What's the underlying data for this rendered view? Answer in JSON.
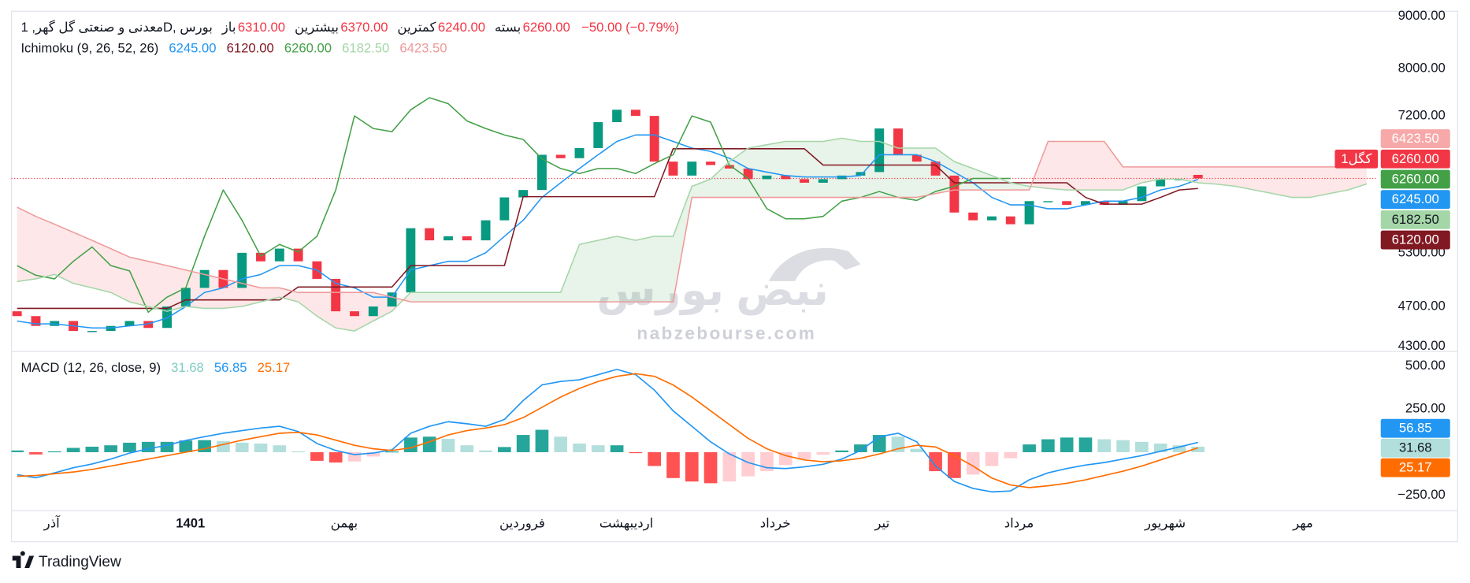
{
  "header": {
    "title": "معدنی و صنعتی گل گهر, 1D, بورس",
    "ohlc": [
      {
        "label": "باز",
        "value": "6310.00"
      },
      {
        "label": "بیشترین",
        "value": "6370.00"
      },
      {
        "label": "کمترین",
        "value": "6240.00"
      },
      {
        "label": "بسته",
        "value": "6260.00"
      }
    ],
    "change": "−50.00 (−0.79%)",
    "value_color": "#f23645"
  },
  "watermark": {
    "logo": "نبض بورس",
    "site": "nabzebourse.com"
  },
  "footer": {
    "brand": "TradingView"
  },
  "chart_data": [
    {
      "type": "candlestick",
      "log_scale": true,
      "ylim": [
        4250,
        9100
      ],
      "yticks": [
        {
          "value": 9000,
          "label": "9000.00"
        },
        {
          "value": 8000,
          "label": "8000.00"
        },
        {
          "value": 7200,
          "label": "7200.00"
        },
        {
          "value": 5300,
          "label": "5300.00"
        },
        {
          "value": 4700,
          "label": "4700.00"
        },
        {
          "value": 4300,
          "label": "4300.00"
        }
      ],
      "xlim": [
        -0.3,
        72.6
      ],
      "x": [
        0,
        1,
        2,
        3,
        4,
        5,
        6,
        7,
        8,
        9,
        10,
        11,
        12,
        13,
        14,
        15,
        16,
        17,
        18,
        19,
        20,
        21,
        22,
        23,
        24,
        25,
        26,
        27,
        28,
        29,
        30,
        31,
        32,
        33,
        34,
        35,
        36,
        37,
        38,
        39,
        40,
        41,
        42,
        43,
        44,
        45,
        46,
        47,
        48,
        49,
        50,
        51,
        52,
        53,
        54,
        55,
        56,
        57,
        58,
        59,
        60,
        61,
        62,
        63,
        64,
        65,
        66,
        67,
        68,
        69,
        70,
        71,
        72
      ],
      "open": [
        4650,
        4600,
        4500,
        4550,
        4450,
        4450,
        4500,
        4550,
        4480,
        4700,
        4900,
        5100,
        4900,
        5300,
        5200,
        5350,
        5200,
        5000,
        4650,
        4600,
        4700,
        4850,
        5600,
        5450,
        5500,
        5450,
        5700,
        6000,
        6100,
        6600,
        6550,
        6700,
        7100,
        7300,
        7200,
        6500,
        6300,
        6500,
        6450,
        6400,
        6250,
        6300,
        6250,
        6200,
        6250,
        6300,
        6350,
        7000,
        6600,
        6500,
        6300,
        5800,
        5700,
        5750,
        5650,
        5950,
        5950,
        5900,
        5950,
        5900,
        5950,
        6150,
        6250,
        6310,
        null,
        null,
        null,
        null,
        null,
        null,
        null,
        null,
        null
      ],
      "close": [
        4600,
        4500,
        4550,
        4450,
        4450,
        4500,
        4550,
        4480,
        4700,
        4900,
        5100,
        4900,
        5300,
        5200,
        5350,
        5200,
        5000,
        4650,
        4600,
        4700,
        4850,
        5600,
        5450,
        5500,
        5450,
        5700,
        6000,
        6100,
        6600,
        6550,
        6700,
        7100,
        7300,
        7200,
        6500,
        6300,
        6500,
        6450,
        6400,
        6250,
        6300,
        6250,
        6200,
        6250,
        6300,
        6350,
        7000,
        6600,
        6500,
        6300,
        5800,
        5700,
        5750,
        5650,
        5950,
        5950,
        5900,
        5950,
        5900,
        5950,
        6150,
        6250,
        6250,
        6260,
        null,
        null,
        null,
        null,
        null,
        null,
        null,
        null,
        null
      ],
      "up_color": "#089981",
      "down_color": "#f23645",
      "last_price_line": true,
      "series": [
        {
          "color": "#2196f3",
          "values": [
            4550,
            4520,
            4520,
            4500,
            4480,
            4480,
            4500,
            4520,
            4580,
            4700,
            4850,
            4900,
            5000,
            5050,
            5150,
            5150,
            5100,
            4950,
            4900,
            4800,
            4800,
            5100,
            5150,
            5200,
            5200,
            5300,
            5500,
            5700,
            6000,
            6200,
            6400,
            6600,
            6800,
            6900,
            6900,
            6800,
            6700,
            6650,
            6550,
            6400,
            6350,
            6300,
            6280,
            6280,
            6280,
            6300,
            6600,
            6600,
            6600,
            6500,
            6350,
            6200,
            6000,
            5900,
            5900,
            5850,
            5850,
            5900,
            5950,
            5950,
            6000,
            6100,
            6150,
            6245,
            null,
            null,
            null,
            null,
            null,
            null,
            null,
            null,
            null
          ]
        },
        {
          "color": "#801922",
          "values": [
            4680,
            4680,
            4680,
            4680,
            4680,
            4680,
            4680,
            4680,
            4680,
            4770,
            4770,
            4770,
            4770,
            4770,
            4770,
            4910,
            4910,
            4910,
            4910,
            4910,
            4910,
            5150,
            5150,
            5150,
            5150,
            5150,
            5150,
            6010,
            6010,
            6010,
            6010,
            6010,
            6010,
            6010,
            6010,
            6690,
            6690,
            6690,
            6690,
            6690,
            6690,
            6690,
            6690,
            6450,
            6450,
            6450,
            6450,
            6450,
            6450,
            6450,
            6200,
            6200,
            6200,
            6200,
            6200,
            6200,
            6200,
            6000,
            5910,
            5910,
            5910,
            6000,
            6100,
            6120,
            null,
            null,
            null,
            null,
            null,
            null,
            null,
            null,
            null
          ]
        },
        {
          "color": "#43a047",
          "values": [
            5150,
            5040,
            5000,
            5200,
            5370,
            5150,
            5090,
            4640,
            4800,
            4900,
            5500,
            6100,
            5700,
            5260,
            5400,
            5310,
            5500,
            6100,
            7200,
            7000,
            6950,
            7300,
            7500,
            7400,
            7120,
            7000,
            6900,
            6830,
            6540,
            6400,
            6330,
            6400,
            6400,
            6330,
            6470,
            6600,
            7200,
            7100,
            6450,
            6260,
            5850,
            5720,
            5720,
            5750,
            5950,
            6000,
            6080,
            6000,
            5960,
            6080,
            6150,
            6260,
            6260,
            6260,
            null,
            null,
            null,
            null,
            null,
            null,
            null,
            null,
            null,
            null,
            null,
            null,
            null,
            null,
            null,
            null,
            null,
            null,
            null
          ]
        },
        {
          "color": "#a5d6a7",
          "values": [
            4970,
            5000,
            5050,
            4950,
            4900,
            4850,
            4750,
            4700,
            4650,
            4700,
            4680,
            4680,
            4700,
            4750,
            4800,
            4750,
            4600,
            4480,
            4450,
            4550,
            4650,
            4850,
            4850,
            4850,
            4850,
            4850,
            4850,
            4850,
            4850,
            4850,
            5400,
            5450,
            5500,
            5450,
            5500,
            5500,
            6150,
            6250,
            6500,
            6700,
            6750,
            6800,
            6800,
            6800,
            6850,
            6800,
            6800,
            6700,
            6700,
            6700,
            6500,
            6400,
            6300,
            6200,
            6150,
            6120,
            6100,
            6100,
            6100,
            6100,
            6200,
            6250,
            6250,
            6200,
            6180,
            6150,
            6100,
            6050,
            6000,
            6000,
            6050,
            6100,
            6182.5
          ]
        },
        {
          "color": "#ef9a9a",
          "values": [
            5870,
            5750,
            5650,
            5550,
            5450,
            5350,
            5250,
            5200,
            5150,
            5100,
            5050,
            5000,
            4950,
            4900,
            4900,
            4850,
            4850,
            4850,
            4850,
            4850,
            4800,
            4750,
            4750,
            4750,
            4750,
            4750,
            4750,
            4750,
            4750,
            4750,
            4750,
            4750,
            4750,
            4750,
            4750,
            4750,
            6000,
            6000,
            6000,
            6000,
            6000,
            6000,
            6000,
            6000,
            6000,
            6000,
            6000,
            6000,
            6000,
            6050,
            6100,
            6100,
            6100,
            6100,
            6100,
            6800,
            6800,
            6800,
            6800,
            6423.5,
            6423.5,
            6423.5,
            6423.5,
            6423.5,
            6423.5,
            6423.5,
            6423.5,
            6423.5,
            6423.5,
            6423.5,
            6423.5,
            6423.5,
            6423.5
          ]
        }
      ],
      "cloud": {
        "series": [
          3,
          4
        ],
        "colors": [
          "rgba(67,160,71,0.12)",
          "rgba(242,54,69,0.12)"
        ]
      },
      "legend": {
        "title": "Ichimoku (9, 26, 52, 26)",
        "values": [
          "6245.00",
          "6120.00",
          "6260.00",
          "6182.50",
          "6423.50"
        ]
      },
      "badges": [
        {
          "text": "6423.50",
          "color": "#f7a8a8",
          "text_color": "#ffffff"
        },
        {
          "text": "6260.00",
          "tag": "کگل1",
          "color": "#f23645",
          "text_color": "#ffffff"
        },
        {
          "text": "6260.00",
          "color": "#43a047",
          "text_color": "#ffffff"
        },
        {
          "text": "6245.00",
          "color": "#2196f3",
          "text_color": "#ffffff"
        },
        {
          "text": "6182.50",
          "color": "#a5d6a7",
          "text_color": "#131722"
        },
        {
          "text": "6120.00",
          "color": "#801922",
          "text_color": "#ffffff"
        }
      ]
    },
    {
      "type": "macd",
      "ylim": [
        -340,
        584
      ],
      "yticks": [
        {
          "value": 500,
          "label": "500.00"
        },
        {
          "value": 250,
          "label": "250.00"
        },
        {
          "value": -250,
          "label": "−250.00"
        }
      ],
      "xlim": [
        -0.3,
        72.6
      ],
      "xticks": [
        {
          "value": 1.85,
          "label": "آذر"
        },
        {
          "value": 9.25,
          "label": "1401",
          "bold": true
        },
        {
          "value": 17.45,
          "label": "بهمن"
        },
        {
          "value": 26.95,
          "label": "فروردین"
        },
        {
          "value": 32.5,
          "label": "اردیبهشت"
        },
        {
          "value": 40.45,
          "label": "خرداد"
        },
        {
          "value": 46.15,
          "label": "تیر"
        },
        {
          "value": 53.45,
          "label": "مرداد"
        },
        {
          "value": 61.25,
          "label": "شهریور"
        },
        {
          "value": 68.6,
          "label": "مهر"
        }
      ],
      "x": [
        0,
        1,
        2,
        3,
        4,
        5,
        6,
        7,
        8,
        9,
        10,
        11,
        12,
        13,
        14,
        15,
        16,
        17,
        18,
        19,
        20,
        21,
        22,
        23,
        24,
        25,
        26,
        27,
        28,
        29,
        30,
        31,
        32,
        33,
        34,
        35,
        36,
        37,
        38,
        39,
        40,
        41,
        42,
        43,
        44,
        45,
        46,
        47,
        48,
        49,
        50,
        51,
        52,
        53,
        54,
        55,
        56,
        57,
        58,
        59,
        60,
        61,
        62,
        63
      ],
      "histogram": {
        "values": [
          10,
          -13,
          5,
          25,
          32,
          40,
          55,
          60,
          60,
          68,
          70,
          65,
          55,
          50,
          40,
          5,
          -50,
          -60,
          -54,
          -25,
          4,
          85,
          90,
          77,
          40,
          10,
          30,
          100,
          130,
          90,
          50,
          40,
          40,
          -5,
          -80,
          -150,
          -170,
          -180,
          -170,
          -140,
          -110,
          -75,
          -40,
          -15,
          10,
          45,
          100,
          90,
          20,
          -110,
          -150,
          -130,
          -80,
          -35,
          45,
          75,
          85,
          85,
          75,
          70,
          60,
          50,
          40,
          31.68
        ],
        "colors": [
          "#26a69a",
          "#b2dfdb",
          "#ff5252",
          "#ffcdd2"
        ]
      },
      "series": [
        {
          "color": "#2196f3",
          "values": [
            -130,
            -148,
            -120,
            -90,
            -68,
            -40,
            -5,
            20,
            40,
            68,
            90,
            110,
            125,
            140,
            150,
            120,
            50,
            10,
            -14,
            -5,
            14,
            110,
            150,
            177,
            165,
            150,
            190,
            300,
            390,
            410,
            420,
            450,
            480,
            450,
            360,
            240,
            150,
            60,
            -10,
            -60,
            -90,
            -95,
            -85,
            -70,
            -40,
            10,
            90,
            110,
            60,
            -80,
            -170,
            -210,
            -230,
            -225,
            -160,
            -120,
            -95,
            -75,
            -60,
            -40,
            -20,
            5,
            30,
            56.85
          ]
        },
        {
          "color": "#ff6d00",
          "values": [
            -140,
            -135,
            -125,
            -115,
            -100,
            -80,
            -60,
            -40,
            -20,
            0,
            20,
            45,
            70,
            90,
            110,
            115,
            100,
            70,
            40,
            20,
            10,
            25,
            60,
            100,
            125,
            140,
            160,
            200,
            260,
            320,
            370,
            410,
            440,
            455,
            440,
            390,
            320,
            240,
            160,
            80,
            20,
            -20,
            -45,
            -55,
            -50,
            -35,
            -10,
            20,
            40,
            30,
            -20,
            -80,
            -150,
            -190,
            -205,
            -195,
            -180,
            -160,
            -135,
            -110,
            -80,
            -45,
            -10,
            25.17
          ]
        }
      ],
      "legend": {
        "title": "MACD (12, 26, close, 9)",
        "values": [
          "31.68",
          "56.85",
          "25.17"
        ],
        "colors": [
          "#80cbc4",
          "#2196f3",
          "#ff6d00"
        ]
      },
      "badges": [
        {
          "text": "56.85",
          "color": "#2196f3",
          "text_color": "#ffffff"
        },
        {
          "text": "31.68",
          "color": "#b2dfdb",
          "text_color": "#131722"
        },
        {
          "text": "25.17",
          "color": "#ff6d00",
          "text_color": "#ffffff"
        }
      ]
    }
  ]
}
